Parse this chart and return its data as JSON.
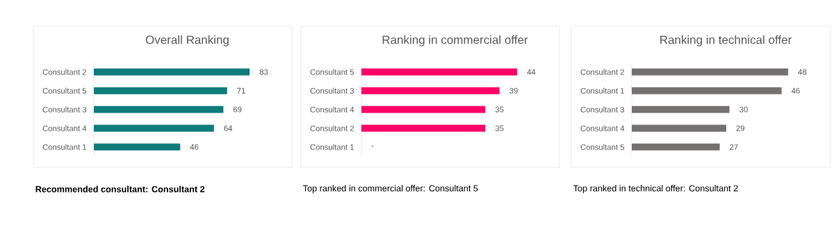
{
  "chart_data": [
    {
      "type": "bar",
      "orientation": "horizontal",
      "title": "Overall Ranking",
      "categories": [
        "Consultant 2",
        "Consultant 5",
        "Consultant 3",
        "Consultant 4",
        "Consultant 1"
      ],
      "values": [
        83,
        71,
        69,
        64,
        46
      ],
      "color": "#0e7c7b",
      "data_labels": true,
      "annotations": [
        "Recommended consultant: Consultant 2"
      ]
    },
    {
      "type": "bar",
      "orientation": "horizontal",
      "title": "Ranking in commercial offer",
      "categories": [
        "Consultant 5",
        "Consultant 3",
        "Consultant 4",
        "Consultant 2",
        "Consultant 1"
      ],
      "values": [
        44,
        39,
        35,
        35,
        0
      ],
      "value_labels": [
        "44",
        "39",
        "35",
        "35",
        "-"
      ],
      "color": "#ff0066",
      "annotations": [
        "Top ranked in commercial offer: Consultant 5"
      ]
    },
    {
      "type": "bar",
      "orientation": "horizontal",
      "title": "Ranking in technical offer",
      "categories": [
        "Consultant 2",
        "Consultant 1",
        "Consultant 3",
        "Consultant 4",
        "Consultant 5"
      ],
      "values": [
        48,
        46,
        30,
        29,
        27
      ],
      "color": "#767171",
      "data_labels": true,
      "annotations": [
        "Top ranked in technical offer: Consultant 2"
      ]
    }
  ]
}
